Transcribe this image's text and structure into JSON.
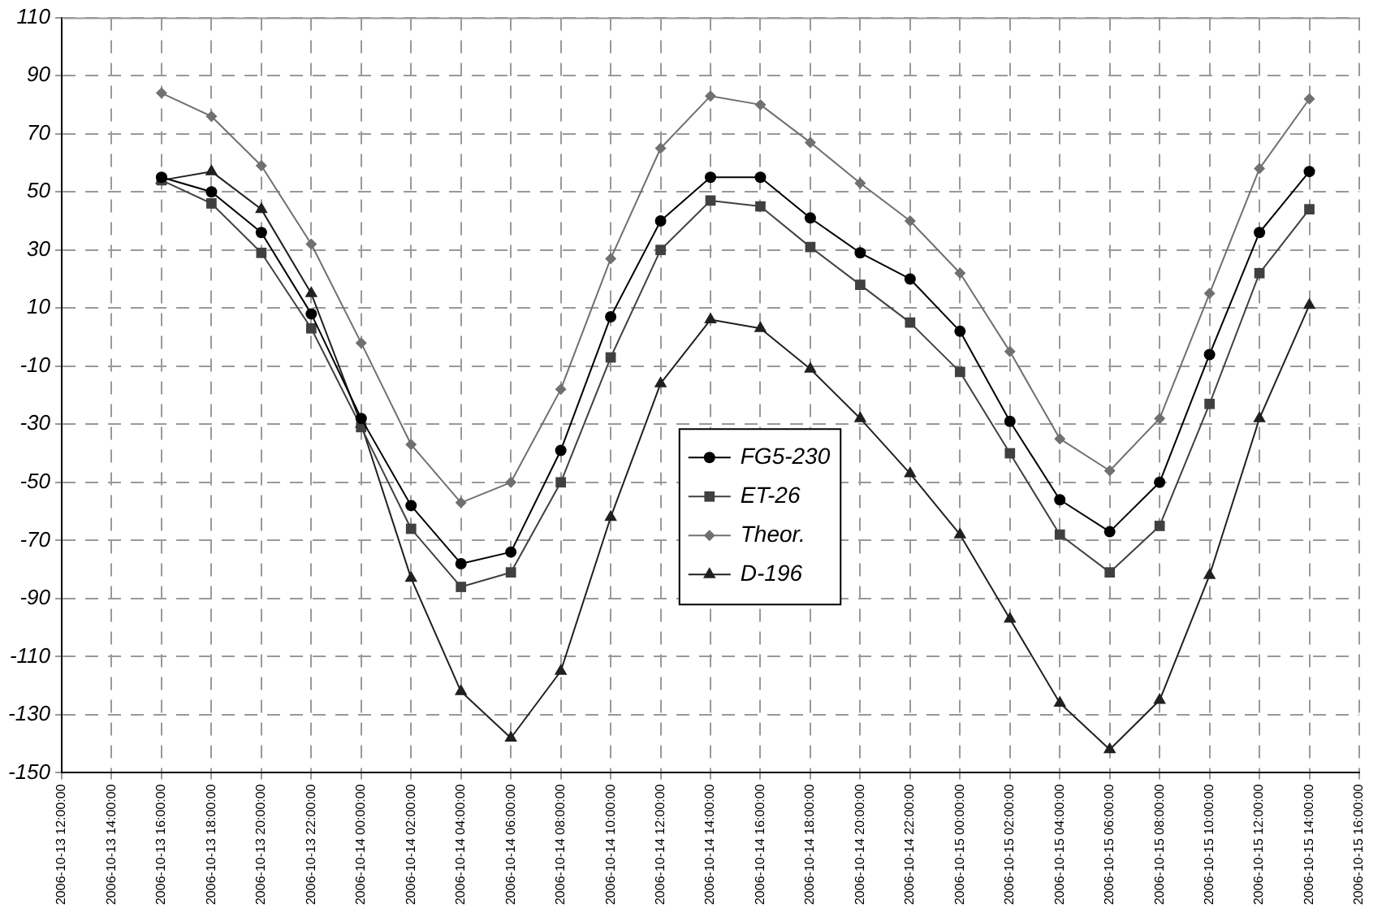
{
  "chart_data": {
    "type": "line",
    "x": [
      "2006-10-13T16:00",
      "2006-10-13T18:00",
      "2006-10-13T20:00",
      "2006-10-13T22:00",
      "2006-10-14T00:00",
      "2006-10-14T02:00",
      "2006-10-14T04:00",
      "2006-10-14T06:00",
      "2006-10-14T08:00",
      "2006-10-14T10:00",
      "2006-10-14T12:00",
      "2006-10-14T14:00",
      "2006-10-14T16:00",
      "2006-10-14T18:00",
      "2006-10-14T20:00",
      "2006-10-14T22:00",
      "2006-10-15T00:00",
      "2006-10-15T02:00",
      "2006-10-15T04:00",
      "2006-10-15T06:00",
      "2006-10-15T08:00",
      "2006-10-15T10:00",
      "2006-10-15T12:00",
      "2006-10-15T14:00"
    ],
    "series": [
      {
        "name": "FG5-230",
        "color": "#000000",
        "marker": "circle",
        "values": [
          55,
          50,
          36,
          8,
          -28,
          -58,
          -78,
          -74,
          -39,
          7,
          40,
          55,
          55,
          41,
          29,
          20,
          2,
          -29,
          -56,
          -67,
          -50,
          -6,
          36,
          57
        ]
      },
      {
        "name": "ET-26",
        "color": "#404040",
        "marker": "square",
        "values": [
          54,
          46,
          29,
          3,
          -31,
          -66,
          -86,
          -81,
          -50,
          -7,
          30,
          47,
          45,
          31,
          18,
          5,
          -12,
          -40,
          -68,
          -81,
          -65,
          -23,
          22,
          44
        ]
      },
      {
        "name": "Theor.",
        "color": "#707070",
        "marker": "diamond",
        "values": [
          84,
          76,
          59,
          32,
          -2,
          -37,
          -57,
          -50,
          -18,
          27,
          65,
          83,
          80,
          67,
          53,
          40,
          22,
          -5,
          -35,
          -46,
          -28,
          15,
          58,
          82
        ]
      },
      {
        "name": "D-196",
        "color": "#202020",
        "marker": "triangle",
        "values": [
          54,
          57,
          44,
          15,
          -30,
          -83,
          -122,
          -138,
          -115,
          -62,
          -16,
          6,
          3,
          -11,
          -28,
          -47,
          -68,
          -97,
          -126,
          -142,
          -125,
          -82,
          -28,
          11
        ]
      }
    ],
    "xlim": [
      "2006-10-13T12:00",
      "2006-10-15T16:00"
    ],
    "xticks": [
      {
        "value": "2006-10-13T12:00",
        "label": "2006-10-13 12:00:00"
      },
      {
        "value": "2006-10-13T14:00",
        "label": "2006-10-13 14:00:00"
      },
      {
        "value": "2006-10-13T16:00",
        "label": "2006-10-13 16:00:00"
      },
      {
        "value": "2006-10-13T18:00",
        "label": "2006-10-13 18:00:00"
      },
      {
        "value": "2006-10-13T20:00",
        "label": "2006-10-13 20:00:00"
      },
      {
        "value": "2006-10-13T22:00",
        "label": "2006-10-13 22:00:00"
      },
      {
        "value": "2006-10-14T00:00",
        "label": "2006-10-14 00:00:00"
      },
      {
        "value": "2006-10-14T02:00",
        "label": "2006-10-14 02:00:00"
      },
      {
        "value": "2006-10-14T04:00",
        "label": "2006-10-14 04:00:00"
      },
      {
        "value": "2006-10-14T06:00",
        "label": "2006-10-14 06:00:00"
      },
      {
        "value": "2006-10-14T08:00",
        "label": "2006-10-14 08:00:00"
      },
      {
        "value": "2006-10-14T10:00",
        "label": "2006-10-14 10:00:00"
      },
      {
        "value": "2006-10-14T12:00",
        "label": "2006-10-14 12:00:00"
      },
      {
        "value": "2006-10-14T14:00",
        "label": "2006-10-14 14:00:00"
      },
      {
        "value": "2006-10-14T16:00",
        "label": "2006-10-14 16:00:00"
      },
      {
        "value": "2006-10-14T18:00",
        "label": "2006-10-14 18:00:00"
      },
      {
        "value": "2006-10-14T20:00",
        "label": "2006-10-14 20:00:00"
      },
      {
        "value": "2006-10-14T22:00",
        "label": "2006-10-14 22:00:00"
      },
      {
        "value": "2006-10-15T00:00",
        "label": "2006-10-15 00:00:00"
      },
      {
        "value": "2006-10-15T02:00",
        "label": "2006-10-15 02:00:00"
      },
      {
        "value": "2006-10-15T04:00",
        "label": "2006-10-15 04:00:00"
      },
      {
        "value": "2006-10-15T06:00",
        "label": "2006-10-15 06:00:00"
      },
      {
        "value": "2006-10-15T08:00",
        "label": "2006-10-15 08:00:00"
      },
      {
        "value": "2006-10-15T10:00",
        "label": "2006-10-15 10:00:00"
      },
      {
        "value": "2006-10-15T12:00",
        "label": "2006-10-15 12:00:00"
      },
      {
        "value": "2006-10-15T14:00",
        "label": "2006-10-15 14:00:00"
      },
      {
        "value": "2006-10-15T16:00",
        "label": "2006-10-15 16:00:00"
      }
    ],
    "ylim": [
      -150,
      110
    ],
    "yticks": [
      -150,
      -130,
      -110,
      -90,
      -70,
      -50,
      -30,
      -10,
      10,
      30,
      50,
      70,
      90,
      110
    ],
    "grid": true,
    "legend": "center",
    "line_style": "solid"
  }
}
